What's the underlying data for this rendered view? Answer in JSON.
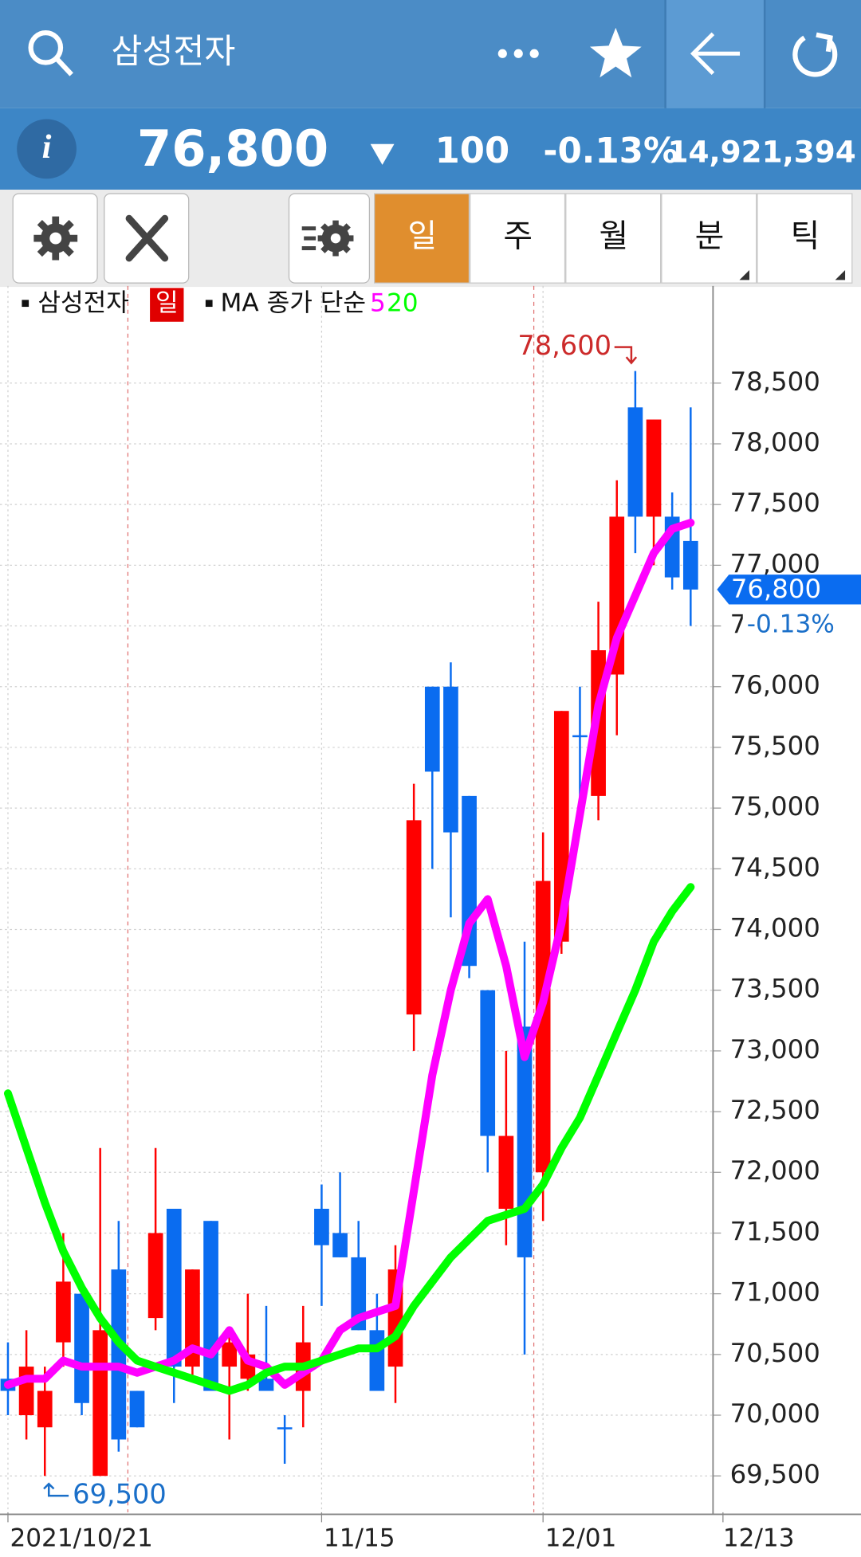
{
  "header": {
    "title": "삼성전자",
    "price": "76,800",
    "change": "100",
    "change_pct": "-0.13%",
    "volume": "14,921,394"
  },
  "tabs": [
    "일",
    "주",
    "월",
    "분",
    "틱"
  ],
  "legend": {
    "stock": "삼성전자",
    "period": "일",
    "ma_label": "MA 종가 단순"
  },
  "chart_data": {
    "type": "candlestick",
    "categories": [
      "2021/10/21",
      null,
      null,
      null,
      null,
      null,
      null,
      null,
      null,
      null,
      null,
      null,
      null,
      null,
      null,
      null,
      null,
      "11/15",
      null,
      null,
      null,
      null,
      null,
      null,
      null,
      null,
      null,
      null,
      null,
      "12/01",
      null,
      null,
      null,
      null,
      null,
      null,
      null,
      "12/13"
    ],
    "open": [
      70300,
      70000,
      69900,
      70600,
      71000,
      69500,
      71200,
      70200,
      70800,
      71700,
      70400,
      71600,
      70400,
      70300,
      70300,
      69900,
      70200,
      71700,
      71500,
      71300,
      70700,
      70400,
      73300,
      76000,
      76000,
      75100,
      73500,
      71700,
      73200,
      72000,
      73900,
      75600,
      75100,
      76100,
      78300,
      77400,
      77400,
      77200
    ],
    "high": [
      70600,
      70700,
      70400,
      71500,
      71000,
      72200,
      71600,
      70200,
      72200,
      71700,
      71200,
      71600,
      70700,
      71000,
      70900,
      70000,
      70900,
      71900,
      72000,
      71600,
      71000,
      71400,
      75200,
      76000,
      76200,
      75100,
      73500,
      73000,
      73900,
      74800,
      75800,
      76000,
      76700,
      77700,
      78600,
      78200,
      77600,
      78300
    ],
    "low": [
      70000,
      69800,
      69500,
      70400,
      70000,
      69500,
      69700,
      69900,
      70700,
      70100,
      70300,
      70200,
      69800,
      70200,
      70200,
      69600,
      69900,
      70900,
      71300,
      70700,
      70200,
      70100,
      73000,
      74500,
      74100,
      73600,
      72000,
      71400,
      70500,
      71600,
      73800,
      74900,
      74900,
      75600,
      77100,
      77000,
      76800,
      76500
    ],
    "close": [
      70200,
      70400,
      70200,
      71100,
      70100,
      70700,
      69800,
      69900,
      71500,
      70400,
      71200,
      70200,
      70600,
      70500,
      70200,
      69900,
      70600,
      71400,
      71300,
      70700,
      70200,
      71200,
      74900,
      75300,
      74800,
      73700,
      72300,
      72300,
      71300,
      74400,
      75800,
      75600,
      76300,
      77400,
      77400,
      78200,
      76900,
      76800
    ],
    "up_color": "#ff0000",
    "down_color": "#0a6cf0",
    "series": [
      {
        "name": "5",
        "color": "#ff00ff",
        "values": [
          70250,
          70300,
          70300,
          70450,
          70400,
          70400,
          70400,
          70350,
          70400,
          70450,
          70550,
          70500,
          70700,
          70450,
          70400,
          70250,
          70350,
          70450,
          70700,
          70800,
          70850,
          70900,
          71850,
          72800,
          73500,
          74050,
          74250,
          73700,
          72950,
          73400,
          74050,
          74950,
          75850,
          76400,
          76750,
          77100,
          77300,
          77350
        ]
      },
      {
        "name": "20",
        "color": "#00ff00",
        "values": [
          72650,
          72200,
          71750,
          71350,
          71050,
          70800,
          70600,
          70450,
          70400,
          70350,
          70300,
          70250,
          70200,
          70250,
          70350,
          70400,
          70400,
          70450,
          70500,
          70550,
          70550,
          70650,
          70900,
          71100,
          71300,
          71450,
          71600,
          71650,
          71700,
          71900,
          72200,
          72450,
          72800,
          73150,
          73500,
          73900,
          74150,
          74350
        ]
      }
    ],
    "ylim": [
      69200,
      79300
    ],
    "yticks": [
      {
        "value": 69500,
        "label": "69,500"
      },
      {
        "value": 70000,
        "label": "70,000"
      },
      {
        "value": 70500,
        "label": "70,500"
      },
      {
        "value": 71000,
        "label": "71,000"
      },
      {
        "value": 71500,
        "label": "71,500"
      },
      {
        "value": 72000,
        "label": "72,000"
      },
      {
        "value": 72500,
        "label": "72,500"
      },
      {
        "value": 73000,
        "label": "73,000"
      },
      {
        "value": 73500,
        "label": "73,500"
      },
      {
        "value": 74000,
        "label": "74,000"
      },
      {
        "value": 74500,
        "label": "74,500"
      },
      {
        "value": 75000,
        "label": "75,000"
      },
      {
        "value": 75500,
        "label": "75,500"
      },
      {
        "value": 76000,
        "label": "76,000"
      },
      {
        "value": 76500,
        "label": "76,500"
      },
      {
        "value": 77000,
        "label": "77,000"
      },
      {
        "value": 77500,
        "label": "77,500"
      },
      {
        "value": 78000,
        "label": "78,000"
      },
      {
        "value": 78500,
        "label": "78,500"
      }
    ],
    "grid": true,
    "annotations": [
      {
        "value": 78600,
        "label": "78,600",
        "color": "#cc2a2a"
      },
      {
        "value": 69500,
        "label": "69,500",
        "color": "#1a6fc9"
      }
    ]
  }
}
